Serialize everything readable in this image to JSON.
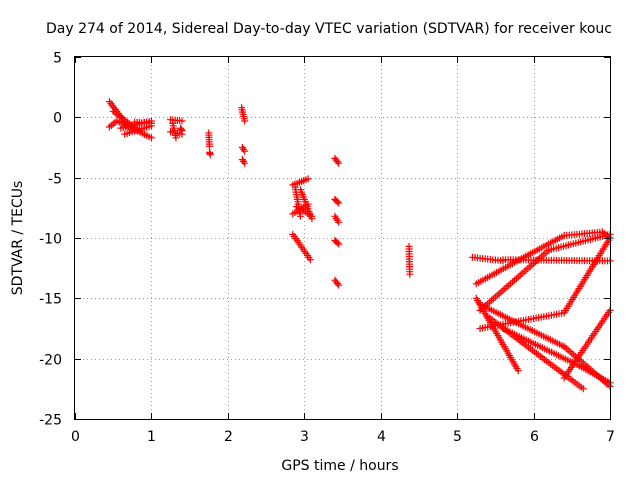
{
  "chart_data": {
    "type": "scatter",
    "title": "Day 274 of 2014, Sidereal Day-to-day VTEC variation (SDTVAR) for receiver kouc",
    "xlabel": "GPS time / hours",
    "ylabel": "SDTVAR / TECUs",
    "xlim": [
      0,
      7
    ],
    "ylim": [
      -25,
      5
    ],
    "x_ticks": [
      "0",
      "1",
      "2",
      "3",
      "4",
      "5",
      "6",
      "7"
    ],
    "y_ticks": [
      "5",
      "0",
      "-5",
      "-10",
      "-15",
      "-20",
      "-25"
    ],
    "grid": true,
    "marker": "+",
    "marker_color": "#ff0000",
    "series": [
      {
        "segments": [
          {
            "x0": 0.45,
            "x1": 0.7,
            "y0": 1.3,
            "y1": -0.8
          },
          {
            "x0": 0.5,
            "x1": 0.85,
            "y0": 0.5,
            "y1": -1.2
          },
          {
            "x0": 0.55,
            "x1": 1.0,
            "y0": -0.3,
            "y1": -1.7
          },
          {
            "x0": 0.45,
            "x1": 0.55,
            "y0": -0.8,
            "y1": -0.3
          },
          {
            "x0": 0.6,
            "x1": 1.0,
            "y0": -0.9,
            "y1": -0.3
          },
          {
            "x0": 0.65,
            "x1": 1.0,
            "y0": -1.4,
            "y1": -0.7
          },
          {
            "x0": 0.78,
            "x1": 1.0,
            "y0": -0.4,
            "y1": -0.5
          },
          {
            "x0": 1.25,
            "x1": 1.4,
            "y0": -0.2,
            "y1": -0.3
          },
          {
            "x0": 1.25,
            "x1": 1.4,
            "y0": -1.2,
            "y1": -1.4
          },
          {
            "x0": 1.28,
            "x1": 1.32,
            "y0": -0.5,
            "y1": -1.7
          },
          {
            "x0": 1.38,
            "x1": 1.4,
            "y0": -0.9,
            "y1": -1.1
          },
          {
            "x0": 1.75,
            "x1": 1.76,
            "y0": -1.3,
            "y1": -2.4
          },
          {
            "x0": 1.76,
            "x1": 1.77,
            "y0": -2.9,
            "y1": -3.1
          },
          {
            "x0": 2.18,
            "x1": 2.22,
            "y0": 0.8,
            "y1": -0.3
          },
          {
            "x0": 2.19,
            "x1": 2.22,
            "y0": -2.5,
            "y1": -2.8
          },
          {
            "x0": 2.19,
            "x1": 2.22,
            "y0": -3.5,
            "y1": -3.8
          },
          {
            "x0": 2.85,
            "x1": 3.05,
            "y0": -5.6,
            "y1": -5.1
          },
          {
            "x0": 2.85,
            "x1": 3.05,
            "y0": -8.0,
            "y1": -7.2
          },
          {
            "x0": 2.88,
            "x1": 2.95,
            "y0": -5.8,
            "y1": -8.2
          },
          {
            "x0": 2.95,
            "x1": 3.1,
            "y0": -6.0,
            "y1": -8.4
          },
          {
            "x0": 2.9,
            "x1": 3.1,
            "y0": -7.4,
            "y1": -8.2
          },
          {
            "x0": 2.85,
            "x1": 3.08,
            "y0": -9.7,
            "y1": -11.8
          },
          {
            "x0": 3.4,
            "x1": 3.45,
            "y0": -3.4,
            "y1": -3.8
          },
          {
            "x0": 3.4,
            "x1": 3.45,
            "y0": -6.8,
            "y1": -7.1
          },
          {
            "x0": 3.4,
            "x1": 3.45,
            "y0": -8.2,
            "y1": -8.7
          },
          {
            "x0": 3.4,
            "x1": 3.45,
            "y0": -10.2,
            "y1": -10.5
          },
          {
            "x0": 3.4,
            "x1": 3.45,
            "y0": -13.5,
            "y1": -13.9
          },
          {
            "x0": 4.37,
            "x1": 4.38,
            "y0": -10.7,
            "y1": -13.0
          },
          {
            "x0": 5.2,
            "x1": 5.6,
            "y0": -11.6,
            "y1": -11.9
          },
          {
            "x0": 5.6,
            "x1": 7.0,
            "y0": -11.8,
            "y1": -11.9
          },
          {
            "x0": 5.25,
            "x1": 5.9,
            "y0": -13.8,
            "y1": -11.5
          },
          {
            "x0": 5.9,
            "x1": 6.4,
            "y0": -11.5,
            "y1": -9.8
          },
          {
            "x0": 6.4,
            "x1": 6.9,
            "y0": -9.8,
            "y1": -9.5
          },
          {
            "x0": 6.9,
            "x1": 7.0,
            "y0": -9.5,
            "y1": -10.0
          },
          {
            "x0": 5.3,
            "x1": 6.2,
            "y0": -16.0,
            "y1": -11.0
          },
          {
            "x0": 6.2,
            "x1": 7.0,
            "y0": -11.0,
            "y1": -9.7
          },
          {
            "x0": 5.3,
            "x1": 6.4,
            "y0": -17.5,
            "y1": -16.2
          },
          {
            "x0": 6.4,
            "x1": 7.0,
            "y0": -16.2,
            "y1": -10.0
          },
          {
            "x0": 5.25,
            "x1": 5.8,
            "y0": -15.0,
            "y1": -21.0
          },
          {
            "x0": 5.3,
            "x1": 6.4,
            "y0": -15.5,
            "y1": -19.0
          },
          {
            "x0": 6.4,
            "x1": 7.0,
            "y0": -19.0,
            "y1": -22.3
          },
          {
            "x0": 5.4,
            "x1": 6.65,
            "y0": -16.5,
            "y1": -22.5
          },
          {
            "x0": 5.6,
            "x1": 6.6,
            "y0": -17.5,
            "y1": -20.6
          },
          {
            "x0": 6.6,
            "x1": 7.0,
            "y0": -20.6,
            "y1": -22.0
          },
          {
            "x0": 6.4,
            "x1": 7.0,
            "y0": -21.6,
            "y1": -16.0
          }
        ]
      }
    ]
  }
}
